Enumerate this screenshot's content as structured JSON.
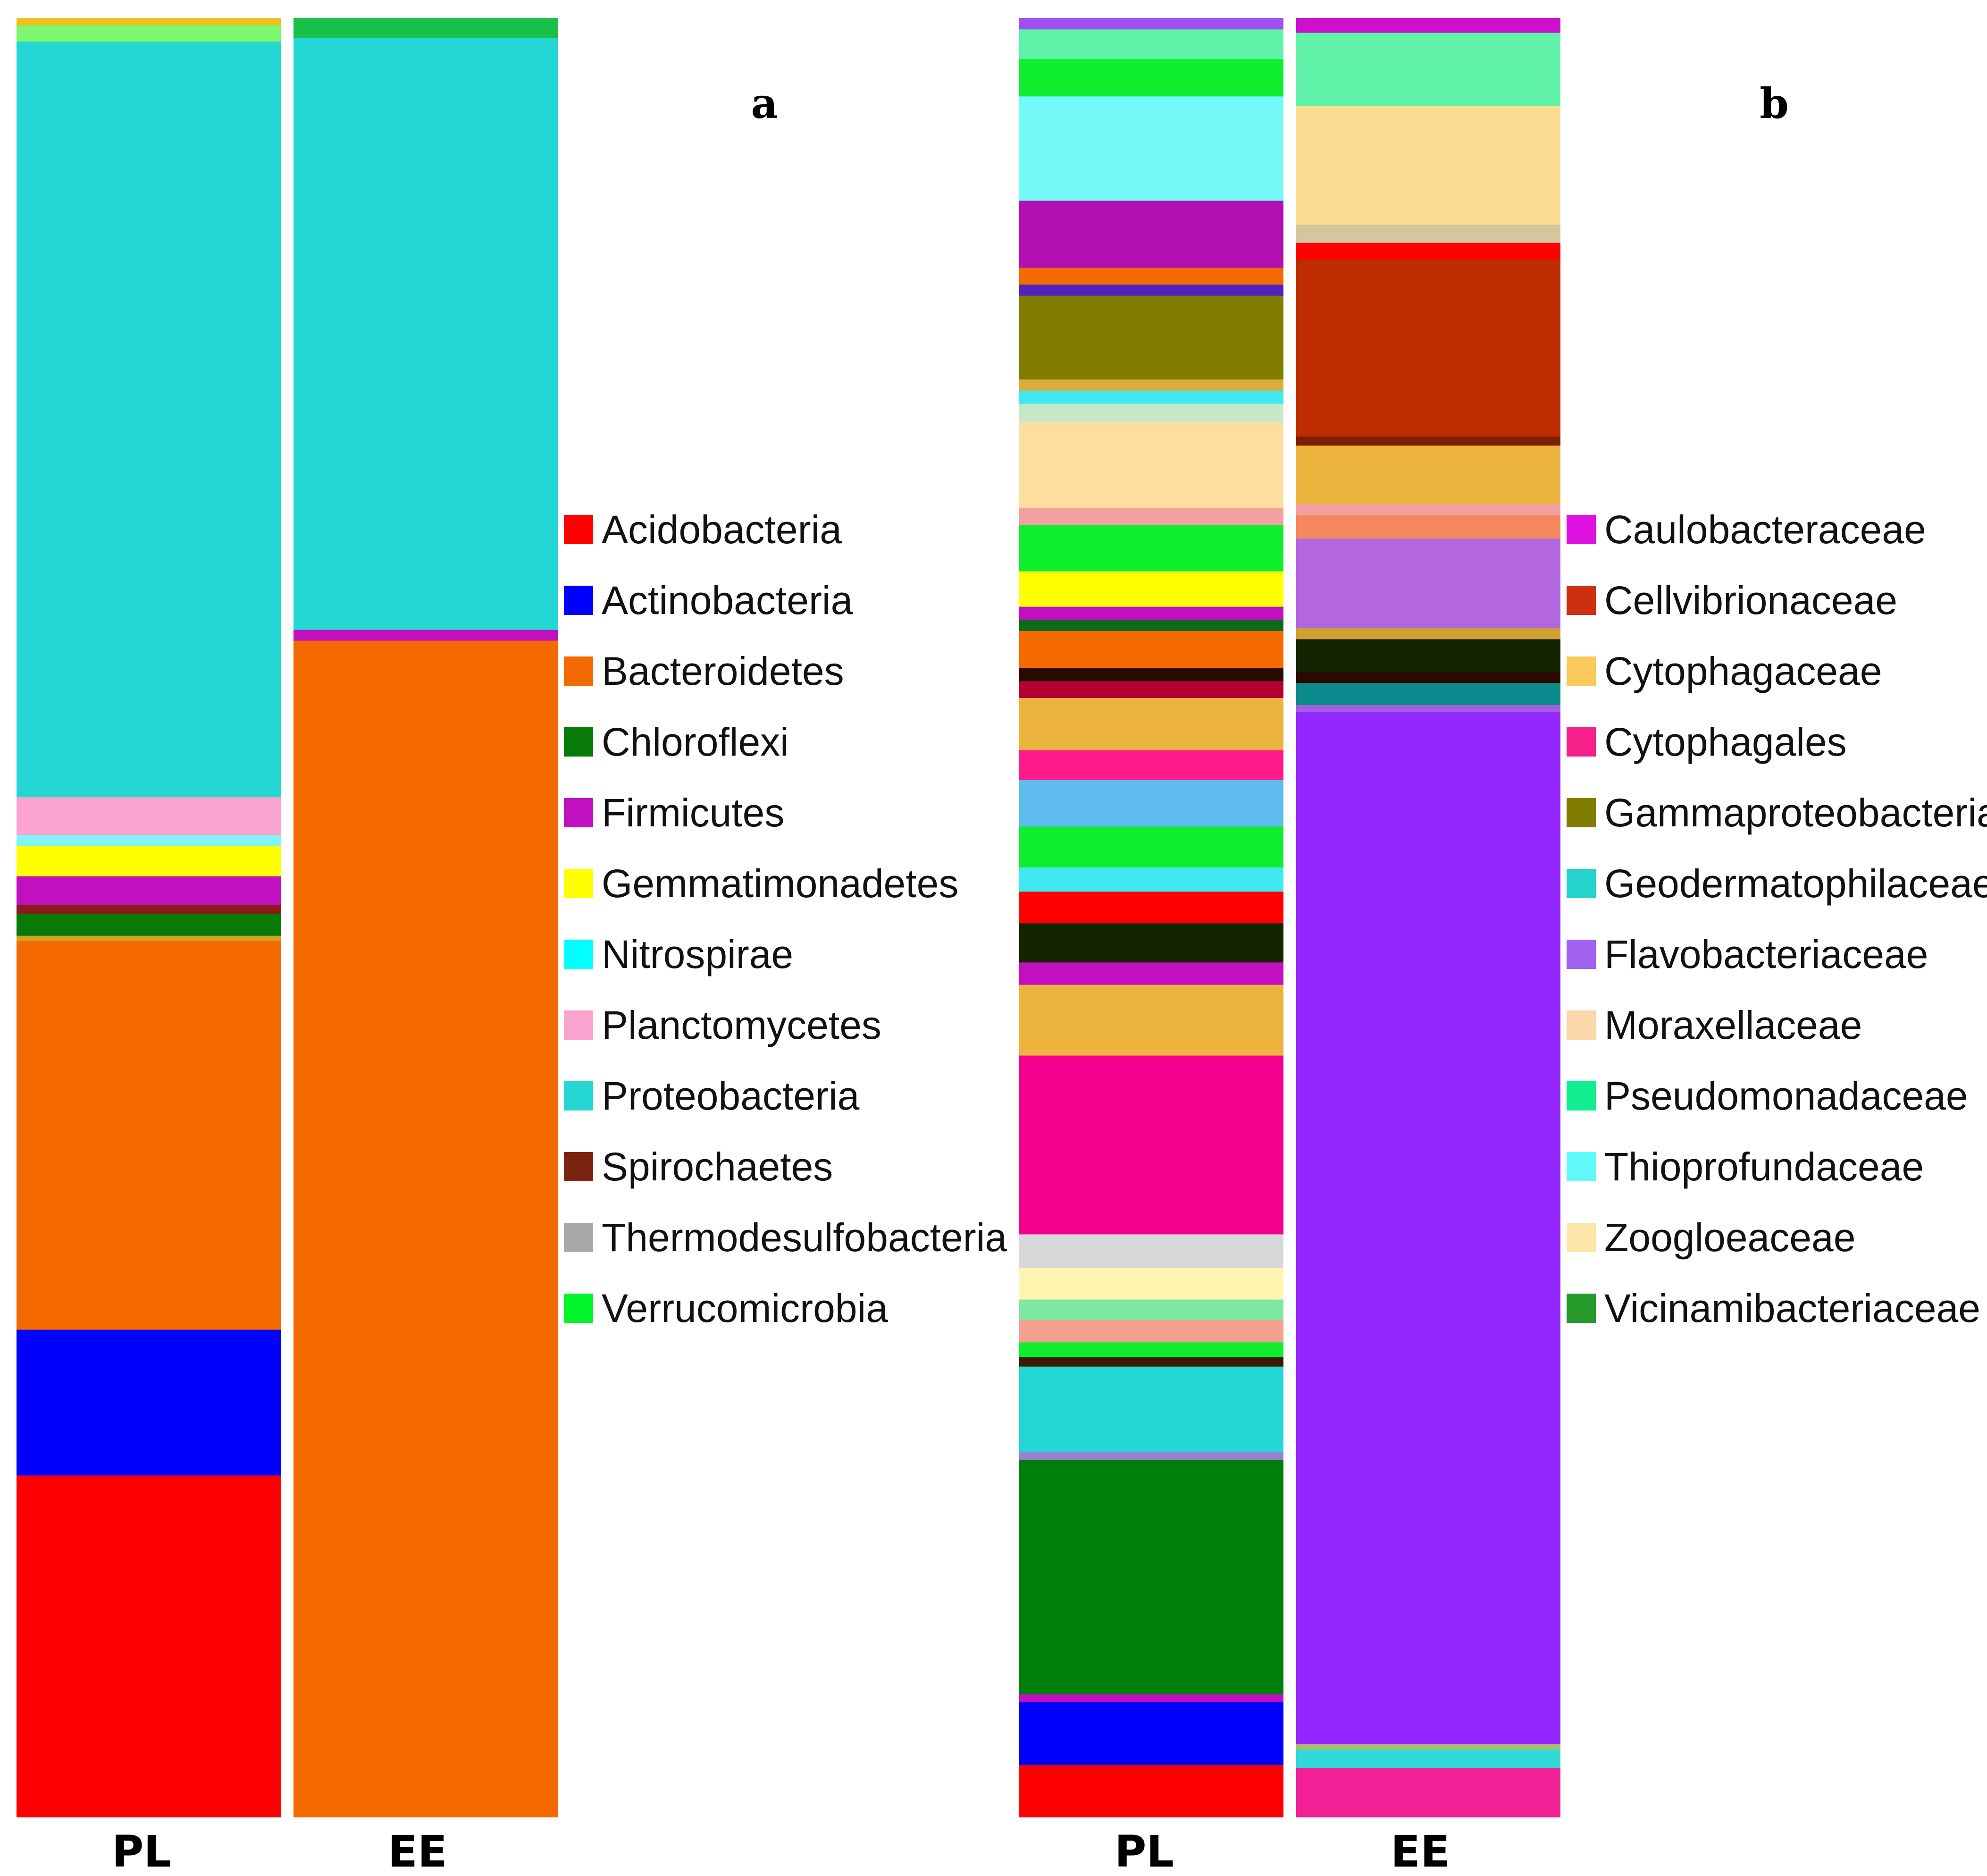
{
  "chart_data": [
    {
      "type": "stacked-bar",
      "panel_label": "a",
      "categories": [
        "PL",
        "EE"
      ],
      "segments": {
        "PL": [
          {
            "color": "#FF0000",
            "value": 19.0
          },
          {
            "color": "#0000FF",
            "value": 8.1
          },
          {
            "color": "#F56A00",
            "value": 21.6
          },
          {
            "color": "#D4A020",
            "value": 0.3
          },
          {
            "color": "#087A08",
            "value": 1.2
          },
          {
            "color": "#8B1A1A",
            "value": 0.5
          },
          {
            "color": "#C010C0",
            "value": 1.6
          },
          {
            "color": "#FFFF00",
            "value": 1.7
          },
          {
            "color": "#7FF5F5",
            "value": 0.6
          },
          {
            "color": "#FBA3CF",
            "value": 2.1
          },
          {
            "color": "#25D7D4",
            "value": 42.0
          },
          {
            "color": "#7CF76E",
            "value": 0.9
          },
          {
            "color": "#F0C020",
            "value": 0.4
          }
        ],
        "EE": [
          {
            "color": "#F56A00",
            "value": 65.4
          },
          {
            "color": "#C010C0",
            "value": 0.6
          },
          {
            "color": "#25D7D4",
            "value": 32.9
          },
          {
            "color": "#18C04A",
            "value": 1.1
          }
        ]
      },
      "legend": [
        {
          "label": "Acidobacteria",
          "color": "#FF0000"
        },
        {
          "label": "Actinobacteria",
          "color": "#0000FF"
        },
        {
          "label": "Bacteroidetes",
          "color": "#F56A00"
        },
        {
          "label": "Chloroflexi",
          "color": "#087A08"
        },
        {
          "label": "Firmicutes",
          "color": "#C010C0"
        },
        {
          "label": "Gemmatimonadetes",
          "color": "#FFFF00"
        },
        {
          "label": "Nitrospirae",
          "color": "#00FFFF"
        },
        {
          "label": "Planctomycetes",
          "color": "#FBA3CF"
        },
        {
          "label": "Proteobacteria",
          "color": "#25D7D4"
        },
        {
          "label": "Spirochaetes",
          "color": "#7A2410"
        },
        {
          "label": "Thermodesulfobacteria",
          "color": "#A9A9A9"
        },
        {
          "label": "Verrucomicrobia",
          "color": "#00F52A"
        }
      ]
    },
    {
      "type": "stacked-bar",
      "panel_label": "b",
      "categories": [
        "PL",
        "EE"
      ],
      "segments": {
        "PL": [
          {
            "color": "#FF0000",
            "value": 2.8
          },
          {
            "color": "#0000FF",
            "value": 3.4
          },
          {
            "color": "#C010C0",
            "value": 0.4
          },
          {
            "color": "#00800A",
            "value": 12.6
          },
          {
            "color": "#9B7FD0",
            "value": 0.4
          },
          {
            "color": "#25D7D4",
            "value": 4.6
          },
          {
            "color": "#3A1A00",
            "value": 0.5
          },
          {
            "color": "#0FEF2F",
            "value": 0.8
          },
          {
            "color": "#F4A090",
            "value": 1.2
          },
          {
            "color": "#7FE8A0",
            "value": 1.1
          },
          {
            "color": "#FFF5B0",
            "value": 1.7
          },
          {
            "color": "#D8D8D8",
            "value": 1.8
          },
          {
            "color": "#F5008E",
            "value": 9.6
          },
          {
            "color": "#ECB33F",
            "value": 3.8
          },
          {
            "color": "#C010C0",
            "value": 1.2
          },
          {
            "color": "#142400",
            "value": 2.1
          },
          {
            "color": "#FF0000",
            "value": 1.7
          },
          {
            "color": "#40E8F0",
            "value": 1.3
          },
          {
            "color": "#0FEF2F",
            "value": 2.2
          },
          {
            "color": "#5FBCEF",
            "value": 2.5
          },
          {
            "color": "#FF1A8C",
            "value": 1.6
          },
          {
            "color": "#ECB33F",
            "value": 2.8
          },
          {
            "color": "#B30033",
            "value": 0.9
          },
          {
            "color": "#2A0A00",
            "value": 0.7
          },
          {
            "color": "#F56A00",
            "value": 2.0
          },
          {
            "color": "#0C6B1A",
            "value": 0.6
          },
          {
            "color": "#C010C0",
            "value": 0.7
          },
          {
            "color": "#FFFF00",
            "value": 1.9
          },
          {
            "color": "#0FEF2F",
            "value": 2.5
          },
          {
            "color": "#F4A0A0",
            "value": 0.9
          },
          {
            "color": "#FCDFA0",
            "value": 4.6
          },
          {
            "color": "#C5E8C8",
            "value": 1.0
          },
          {
            "color": "#40E8F0",
            "value": 0.7
          },
          {
            "color": "#D9AE3C",
            "value": 0.6
          },
          {
            "color": "#807D00",
            "value": 4.5
          },
          {
            "color": "#5020C0",
            "value": 0.6
          },
          {
            "color": "#F56A00",
            "value": 0.9
          },
          {
            "color": "#B010B0",
            "value": 3.6
          },
          {
            "color": "#75F8F8",
            "value": 5.6
          },
          {
            "color": "#0FEF2F",
            "value": 2.0
          },
          {
            "color": "#5FF2A8",
            "value": 1.6
          },
          {
            "color": "#A050F0",
            "value": 0.6
          }
        ],
        "EE": [
          {
            "color": "#F02095",
            "value": 2.7
          },
          {
            "color": "#30D8D8",
            "value": 1.0
          },
          {
            "color": "#A8C070",
            "value": 0.3
          },
          {
            "color": "#9426FF",
            "value": 56.5
          },
          {
            "color": "#A060E0",
            "value": 0.4
          },
          {
            "color": "#0A8A8A",
            "value": 1.2
          },
          {
            "color": "#2A0A00",
            "value": 0.6
          },
          {
            "color": "#142400",
            "value": 1.8
          },
          {
            "color": "#D0A030",
            "value": 0.6
          },
          {
            "color": "#B266E0",
            "value": 4.9
          },
          {
            "color": "#F4875E",
            "value": 1.3
          },
          {
            "color": "#F4A0A0",
            "value": 0.6
          },
          {
            "color": "#ECB33F",
            "value": 3.2
          },
          {
            "color": "#7A1F00",
            "value": 0.5
          },
          {
            "color": "#BE2D00",
            "value": 9.7
          },
          {
            "color": "#FF0000",
            "value": 0.9
          },
          {
            "color": "#D5C6A0",
            "value": 1.0
          },
          {
            "color": "#FBDC90",
            "value": 6.5
          },
          {
            "color": "#5FF2A8",
            "value": 4.0
          },
          {
            "color": "#CC10CC",
            "value": 0.8
          }
        ]
      },
      "legend": [
        {
          "label": "Caulobacteraceae",
          "color": "#E010E0"
        },
        {
          "label": "Cellvibrionaceae",
          "color": "#CC3010"
        },
        {
          "label": "Cytophagaceae",
          "color": "#FBC85A"
        },
        {
          "label": "Cytophagales",
          "color": "#F5208A"
        },
        {
          "label": "Gammaproteobacteria",
          "color": "#807D00"
        },
        {
          "label": "Geodermatophilaceae",
          "color": "#25D2CC"
        },
        {
          "label": "Flavobacteriaceae",
          "color": "#A060F0"
        },
        {
          "label": "Moraxellaceae",
          "color": "#FBD6A8"
        },
        {
          "label": "Pseudomonadaceae",
          "color": "#10EE90"
        },
        {
          "label": "Thioprofundaceae",
          "color": "#60F8F8"
        },
        {
          "label": "Zoogloeaceae",
          "color": "#FCE7A8"
        },
        {
          "label": "Vicinamibacteriaceae",
          "color": "#259A2A"
        }
      ]
    }
  ]
}
